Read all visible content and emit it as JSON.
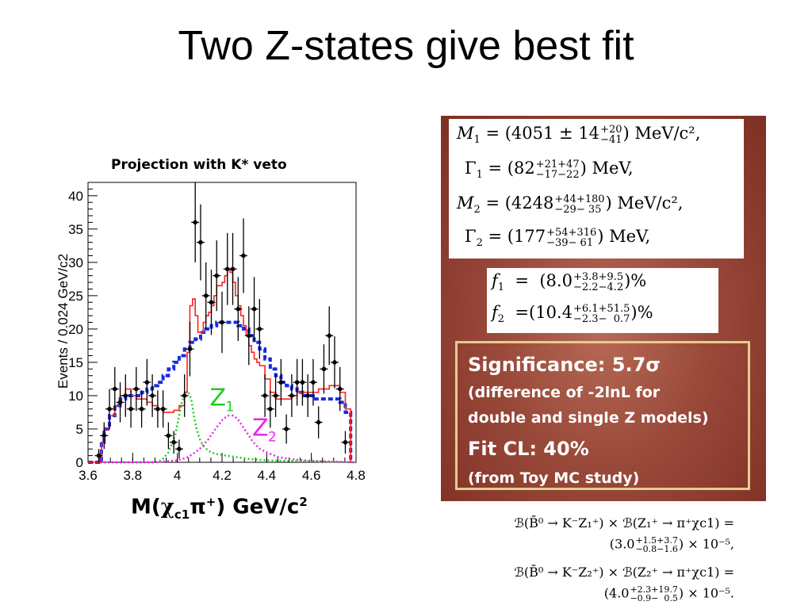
{
  "slide": {
    "title": "Two Z-states give best fit"
  },
  "chart_data": {
    "type": "line",
    "title": "Projection with K* veto",
    "xlabel": "M(χc1π+) GeV/c2",
    "ylabel": "Events / 0.024 GeV/c2",
    "xlim": [
      3.6,
      4.8
    ],
    "ylim": [
      0,
      42
    ],
    "x_ticks": [
      "3.6",
      "3.8",
      "4",
      "4.2",
      "4.4",
      "4.6",
      "4.8"
    ],
    "y_ticks": [
      "0",
      "5",
      "10",
      "15",
      "20",
      "25",
      "30",
      "35",
      "40"
    ],
    "series": [
      {
        "label_kind": "data points",
        "color": "#000000",
        "x": [
          3.648,
          3.672,
          3.696,
          3.72,
          3.744,
          3.768,
          3.792,
          3.816,
          3.84,
          3.864,
          3.888,
          3.912,
          3.936,
          3.96,
          3.984,
          4.008,
          4.032,
          4.056,
          4.08,
          4.104,
          4.128,
          4.152,
          4.176,
          4.2,
          4.224,
          4.248,
          4.272,
          4.296,
          4.32,
          4.344,
          4.368,
          4.392,
          4.416,
          4.44,
          4.464,
          4.488,
          4.512,
          4.536,
          4.56,
          4.584,
          4.608,
          4.632,
          4.656,
          4.68,
          4.704,
          4.728,
          4.752
        ],
        "y": [
          1,
          4,
          8,
          11,
          9,
          10,
          8,
          11,
          8,
          12,
          10,
          8,
          8,
          4,
          3,
          2,
          10,
          17,
          36,
          33,
          25,
          24,
          28,
          21,
          29,
          29,
          23,
          31,
          19,
          23,
          20,
          10,
          8,
          10,
          12,
          5,
          10,
          12,
          12,
          10,
          12,
          6,
          14,
          19,
          15,
          11,
          3
        ],
        "err": [
          1,
          2,
          3,
          3.3,
          3,
          3.2,
          2.8,
          3.3,
          2.8,
          3.5,
          3.2,
          2.8,
          2.8,
          2,
          1.7,
          1.4,
          3.2,
          4.1,
          6,
          5.7,
          5,
          4.9,
          5.3,
          4.6,
          5.4,
          5.4,
          4.8,
          5.6,
          4.4,
          4.8,
          4.5,
          3.2,
          2.8,
          3.2,
          3.5,
          2.2,
          3.2,
          3.5,
          3.5,
          3.2,
          3.5,
          2.4,
          3.7,
          4.4,
          3.9,
          3.3,
          1.7
        ]
      },
      {
        "label_kind": "total fit",
        "color": "#ff2020",
        "x": [
          3.6,
          3.636,
          3.66,
          3.672,
          3.696,
          3.72,
          3.744,
          3.768,
          3.792,
          3.816,
          3.84,
          3.864,
          3.888,
          3.912,
          3.936,
          3.96,
          3.984,
          4.008,
          4.032,
          4.044,
          4.056,
          4.068,
          4.08,
          4.092,
          4.104,
          4.116,
          4.128,
          4.14,
          4.152,
          4.164,
          4.176,
          4.188,
          4.2,
          4.212,
          4.224,
          4.236,
          4.248,
          4.26,
          4.272,
          4.284,
          4.296,
          4.308,
          4.32,
          4.332,
          4.344,
          4.356,
          4.368,
          4.392,
          4.416,
          4.44,
          4.464,
          4.488,
          4.512,
          4.536,
          4.56,
          4.584,
          4.608,
          4.632,
          4.656,
          4.68,
          4.704,
          4.728,
          4.752,
          4.776
        ],
        "y": [
          0,
          0,
          3,
          5,
          7,
          8.5,
          10,
          11,
          10,
          9.5,
          9.5,
          9,
          8.5,
          8,
          7.5,
          7.5,
          7.8,
          8.5,
          10.5,
          16.5,
          23.5,
          24.5,
          22,
          19.5,
          19.5,
          21,
          22,
          22.5,
          23.5,
          25,
          26.5,
          26.5,
          27,
          28,
          29,
          28.5,
          27,
          25,
          23.5,
          22,
          20.5,
          19,
          17.5,
          16.5,
          15.5,
          15,
          14.5,
          12.5,
          10.5,
          9.5,
          9.5,
          9.5,
          10,
          10.5,
          10.5,
          10.5,
          10.5,
          11,
          11,
          11.5,
          11.5,
          10.5,
          8,
          0
        ]
      },
      {
        "label_kind": "background",
        "color": "#1a2be0",
        "x": [
          3.6,
          3.636,
          3.66,
          3.672,
          3.696,
          3.72,
          3.744,
          3.768,
          3.792,
          3.816,
          3.84,
          3.864,
          3.888,
          3.912,
          3.936,
          3.96,
          3.984,
          4.008,
          4.032,
          4.056,
          4.08,
          4.104,
          4.128,
          4.152,
          4.176,
          4.2,
          4.224,
          4.248,
          4.272,
          4.296,
          4.32,
          4.344,
          4.368,
          4.392,
          4.416,
          4.44,
          4.464,
          4.488,
          4.512,
          4.536,
          4.56,
          4.584,
          4.608,
          4.632,
          4.656,
          4.68,
          4.704,
          4.728,
          4.752,
          4.776
        ],
        "y": [
          0,
          0,
          3,
          5,
          7,
          8.5,
          9.5,
          10,
          10,
          10,
          10.5,
          11,
          11.5,
          12,
          13,
          14,
          15,
          16,
          17,
          18,
          18.5,
          19.5,
          20,
          20.5,
          21,
          21,
          21,
          21,
          20.5,
          20,
          19,
          18,
          17,
          15.5,
          14,
          13,
          12,
          11.5,
          11,
          10.5,
          10,
          10,
          9.5,
          9.5,
          9.5,
          9.5,
          9.5,
          9,
          7.5,
          0
        ]
      },
      {
        "label_kind": "Z1 component",
        "color": "#22cc22",
        "x": [
          3.6,
          3.9,
          3.93,
          3.96,
          3.99,
          4.005,
          4.02,
          4.035,
          4.05,
          4.062,
          4.074,
          4.086,
          4.1,
          4.115,
          4.13,
          4.15,
          4.18,
          4.22,
          4.26,
          4.32,
          4.4,
          4.5,
          4.8
        ],
        "y": [
          0,
          0,
          0.3,
          1.5,
          4,
          6.5,
          9,
          10.5,
          10.5,
          9.5,
          7,
          5,
          3.5,
          2.5,
          2,
          1.5,
          1.2,
          1,
          0.8,
          0.5,
          0.3,
          0.2,
          0
        ]
      },
      {
        "label_kind": "Z2 component",
        "color": "#ee22ee",
        "x": [
          3.6,
          3.9,
          4.0,
          4.05,
          4.1,
          4.14,
          4.17,
          4.2,
          4.225,
          4.25,
          4.27,
          4.29,
          4.31,
          4.34,
          4.37,
          4.4,
          4.45,
          4.5,
          4.6,
          4.8
        ],
        "y": [
          0,
          0,
          0.3,
          0.8,
          2,
          3.5,
          5,
          6.3,
          7,
          7,
          6.5,
          5.5,
          4.5,
          3,
          2,
          1.5,
          0.8,
          0.5,
          0.2,
          0
        ]
      }
    ],
    "annotations": [
      {
        "text": "Z",
        "sub": "1",
        "color": "#22cc22",
        "x": 4.145,
        "y": 8.5
      },
      {
        "text": "Z",
        "sub": "2",
        "color": "#ee22ee",
        "x": 4.335,
        "y": 4
      }
    ]
  },
  "fit_results": {
    "m1": {
      "lhs": "M",
      "sub": "1",
      "val": " = (4051 ± 14",
      "sup": "+20",
      "sdn": "−41",
      "unit": ") MeV/c²,"
    },
    "g1": {
      "lhs": "Γ",
      "sub": "1",
      "val": " = (82",
      "sup": "+21+47",
      "sdn": "−17−22",
      "unit": ") MeV,"
    },
    "m2": {
      "lhs": "M",
      "sub": "2",
      "val": " = (4248",
      "sup": "+44+180",
      "sdn": "−29− 35",
      "unit": ") MeV/c²,"
    },
    "g2": {
      "lhs": "Γ",
      "sub": "2",
      "val": " = (177",
      "sup": "+54+316",
      "sdn": "−39− 61",
      "unit": ") MeV,"
    },
    "f1": {
      "lhs": "f",
      "sub": "1",
      "val": "  =  (8.0",
      "sup": "+3.8+9.5",
      "sdn": "−2.2−4.2",
      "unit": ")%"
    },
    "f2": {
      "lhs": "f",
      "sub": "2",
      "val": "  =(10.4",
      "sup": "+6.1+51.5",
      "sdn": "−2.3−  0.7",
      "unit": ")%"
    }
  },
  "significance": {
    "line1": "Significance: 5.7σ",
    "line2": "(difference of -2lnL for",
    "line3": "double and single Z models)",
    "line4": "Fit CL: 40%",
    "line5": "(from Toy MC study)"
  },
  "branching": {
    "b1": "ℬ(B̄⁰ → K⁻Z₁⁺) × ℬ(Z₁⁺ → π⁺χc1) =",
    "b1val": "(3.0",
    "b1sup": "+1.5+3.7",
    "b1sdn": "−0.8−1.6",
    "b1end": ") × 10⁻⁵,",
    "b2": "ℬ(B̄⁰ → K⁻Z₂⁺) × ℬ(Z₂⁺ → π⁺χc1) =",
    "b2val": "(4.0",
    "b2sup": "+2.3+19.7",
    "b2sdn": "−0.9−  0.5",
    "b2end": ") × 10⁻⁵."
  }
}
